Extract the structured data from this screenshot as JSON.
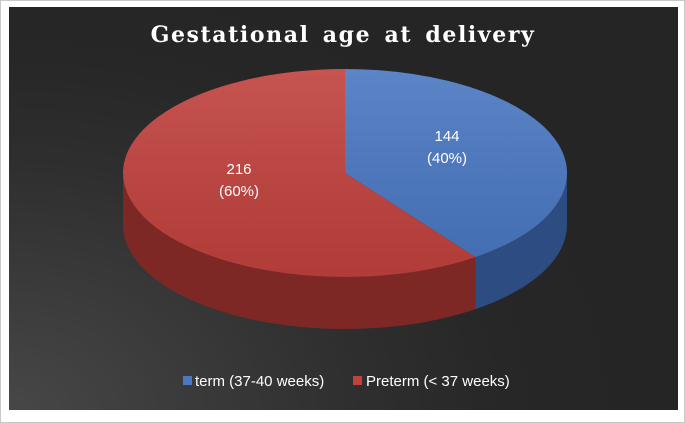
{
  "chart_data": {
    "type": "pie",
    "title": "Gestational age at delivery",
    "slices": [
      {
        "name": "term (37-40 weeks)",
        "value": 144,
        "label": "144",
        "percent_label": "(40%)",
        "color": "#4a78c2",
        "side_color": "#2d4c82"
      },
      {
        "name": "Preterm (< 37 weeks)",
        "value": 216,
        "label": "216",
        "percent_label": "(60%)",
        "color": "#c0413d",
        "side_color": "#7e2826"
      }
    ],
    "legend_position": "bottom",
    "style": "3d"
  }
}
